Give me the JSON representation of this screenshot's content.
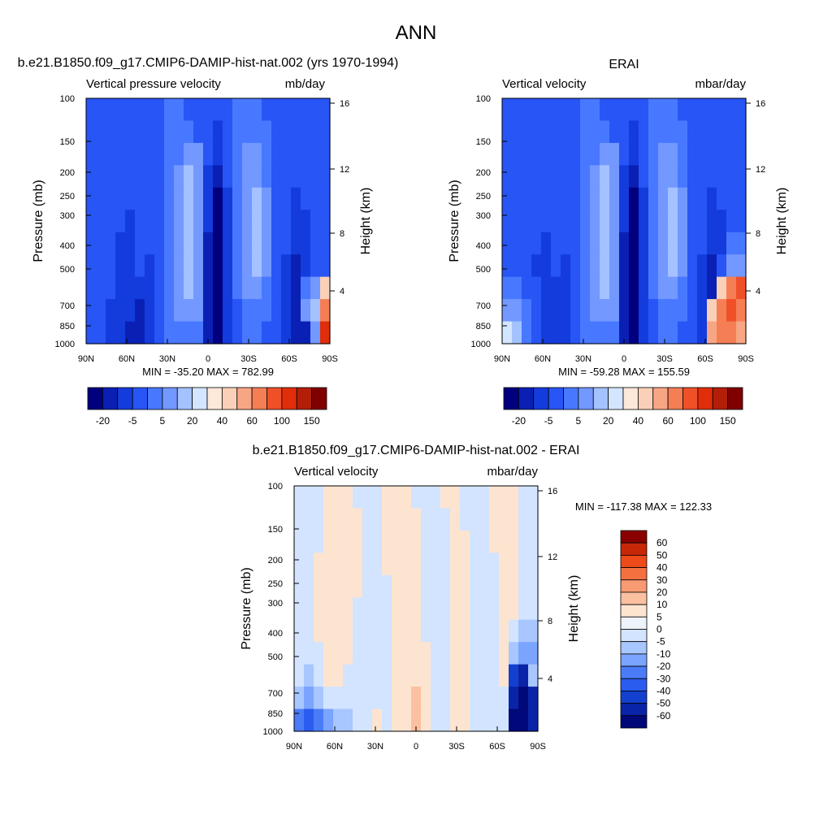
{
  "figure_title": "ANN",
  "colors": {
    "palette_main": [
      "#00007f",
      "#0a20b4",
      "#143cdc",
      "#2855f5",
      "#4878ff",
      "#7398ff",
      "#a4c2ff",
      "#d3e6ff",
      "#fde8d9",
      "#fbd0b8",
      "#f7a684",
      "#f57e55",
      "#f05028",
      "#e02e0a",
      "#b41e08",
      "#800000"
    ],
    "palette_diff": [
      "#00087a",
      "#0a24a8",
      "#1440d0",
      "#2a5cf0",
      "#4a7cf8",
      "#7aa4ff",
      "#a8c6ff",
      "#d2e4ff",
      "#eef2fa",
      "#fde4d0",
      "#fbc0a0",
      "#f89a72",
      "#f5703f",
      "#ee4a1a",
      "#c82808",
      "#8a0000"
    ]
  },
  "chart_data": [
    {
      "type": "contour",
      "id": "test",
      "title": "b.e21.B1850.f09_g17.CMIP6-DAMIP-hist-nat.002 (yrs 1970-1994)",
      "subtitle_left": "Vertical pressure velocity",
      "subtitle_right": "mb/day",
      "ylabel": "Pressure (mb)",
      "ylabel_right": "Height (km)",
      "x_ticks": [
        "90N",
        "60N",
        "30N",
        "0",
        "30S",
        "60S",
        "90S"
      ],
      "y_ticks": [
        "100",
        "150",
        "200",
        "250",
        "300",
        "400",
        "500",
        "700",
        "850",
        "1000"
      ],
      "y_right_ticks": [
        "4",
        "8",
        "12",
        "16"
      ],
      "stats": "MIN = -35.20  MAX = 782.99",
      "colorbar_labels": [
        "-20",
        "-5",
        "5",
        "20",
        "40",
        "60",
        "100",
        "150"
      ],
      "palette": "main",
      "field": [
        [
          3,
          3,
          3,
          3,
          3,
          3,
          3,
          3,
          4,
          4,
          3,
          3,
          3,
          3,
          3,
          4,
          4,
          4,
          3,
          3,
          3,
          3,
          3,
          3,
          3
        ],
        [
          3,
          3,
          3,
          3,
          3,
          3,
          3,
          3,
          4,
          4,
          4,
          3,
          3,
          2,
          3,
          4,
          4,
          4,
          4,
          3,
          3,
          3,
          3,
          3,
          3
        ],
        [
          3,
          3,
          3,
          3,
          3,
          3,
          3,
          3,
          4,
          4,
          5,
          5,
          3,
          2,
          3,
          4,
          5,
          5,
          4,
          3,
          3,
          3,
          3,
          3,
          3
        ],
        [
          3,
          3,
          3,
          3,
          3,
          3,
          3,
          3,
          4,
          5,
          6,
          5,
          2,
          1,
          3,
          4,
          5,
          5,
          4,
          3,
          3,
          3,
          3,
          3,
          3
        ],
        [
          3,
          3,
          3,
          3,
          3,
          3,
          3,
          3,
          4,
          5,
          6,
          5,
          2,
          0,
          2,
          4,
          5,
          6,
          5,
          3,
          3,
          2,
          3,
          3,
          3
        ],
        [
          3,
          3,
          3,
          3,
          2,
          3,
          3,
          3,
          4,
          5,
          6,
          5,
          2,
          0,
          2,
          4,
          5,
          6,
          5,
          3,
          3,
          2,
          2,
          3,
          3
        ],
        [
          3,
          3,
          3,
          2,
          2,
          3,
          3,
          3,
          4,
          5,
          6,
          5,
          1,
          0,
          2,
          4,
          5,
          6,
          5,
          3,
          3,
          2,
          2,
          3,
          3
        ],
        [
          3,
          3,
          3,
          2,
          2,
          3,
          2,
          3,
          4,
          5,
          6,
          5,
          1,
          0,
          2,
          4,
          5,
          6,
          5,
          3,
          2,
          1,
          2,
          3,
          3
        ],
        [
          3,
          3,
          3,
          2,
          2,
          2,
          2,
          3,
          4,
          5,
          6,
          5,
          1,
          0,
          2,
          4,
          5,
          5,
          4,
          3,
          2,
          1,
          4,
          5,
          9
        ],
        [
          3,
          3,
          2,
          2,
          2,
          1,
          2,
          3,
          4,
          5,
          5,
          5,
          1,
          0,
          2,
          3,
          4,
          4,
          4,
          3,
          2,
          1,
          5,
          6,
          11
        ],
        [
          3,
          3,
          2,
          2,
          1,
          1,
          2,
          3,
          4,
          4,
          4,
          4,
          1,
          0,
          2,
          3,
          4,
          4,
          3,
          3,
          2,
          1,
          1,
          5,
          13
        ]
      ]
    },
    {
      "type": "contour",
      "id": "reference",
      "title": "ERAI",
      "subtitle_left": "Vertical velocity",
      "subtitle_right": "mbar/day",
      "ylabel": "Pressure (mb)",
      "ylabel_right": "Height (km)",
      "x_ticks": [
        "90N",
        "60N",
        "30N",
        "0",
        "30S",
        "60S",
        "90S"
      ],
      "y_ticks": [
        "100",
        "150",
        "200",
        "250",
        "300",
        "400",
        "500",
        "700",
        "850",
        "1000"
      ],
      "y_right_ticks": [
        "4",
        "8",
        "12",
        "16"
      ],
      "stats": "MIN = -59.28  MAX = 155.59",
      "colorbar_labels": [
        "-20",
        "-5",
        "5",
        "20",
        "40",
        "60",
        "100",
        "150"
      ],
      "palette": "main",
      "field": [
        [
          3,
          3,
          3,
          3,
          3,
          3,
          3,
          3,
          4,
          4,
          3,
          3,
          3,
          3,
          3,
          4,
          4,
          4,
          3,
          3,
          3,
          3,
          3,
          3,
          3
        ],
        [
          3,
          3,
          3,
          3,
          3,
          3,
          3,
          3,
          4,
          4,
          4,
          3,
          3,
          2,
          3,
          4,
          4,
          4,
          4,
          3,
          3,
          3,
          3,
          3,
          3
        ],
        [
          3,
          3,
          3,
          3,
          3,
          3,
          3,
          3,
          4,
          4,
          5,
          5,
          3,
          2,
          3,
          4,
          5,
          5,
          4,
          3,
          3,
          3,
          3,
          3,
          3
        ],
        [
          3,
          3,
          3,
          3,
          3,
          3,
          3,
          3,
          4,
          5,
          6,
          5,
          2,
          1,
          3,
          4,
          5,
          5,
          4,
          3,
          3,
          3,
          3,
          3,
          3
        ],
        [
          3,
          3,
          3,
          3,
          3,
          3,
          3,
          3,
          4,
          5,
          6,
          5,
          2,
          0,
          2,
          4,
          5,
          6,
          5,
          3,
          3,
          2,
          3,
          3,
          3
        ],
        [
          3,
          3,
          3,
          3,
          3,
          3,
          3,
          3,
          4,
          5,
          6,
          5,
          2,
          0,
          2,
          4,
          5,
          6,
          5,
          3,
          3,
          2,
          2,
          3,
          3
        ],
        [
          3,
          3,
          3,
          3,
          2,
          3,
          3,
          3,
          4,
          5,
          6,
          5,
          1,
          0,
          2,
          4,
          5,
          6,
          5,
          3,
          3,
          2,
          2,
          4,
          4
        ],
        [
          3,
          3,
          3,
          2,
          2,
          3,
          2,
          3,
          4,
          5,
          6,
          5,
          1,
          0,
          2,
          4,
          5,
          6,
          5,
          3,
          2,
          1,
          3,
          5,
          5
        ],
        [
          4,
          4,
          3,
          3,
          2,
          2,
          2,
          3,
          4,
          5,
          6,
          5,
          1,
          0,
          2,
          4,
          5,
          5,
          4,
          3,
          2,
          1,
          9,
          11,
          12
        ],
        [
          5,
          5,
          4,
          3,
          2,
          2,
          2,
          3,
          4,
          5,
          5,
          5,
          1,
          0,
          2,
          3,
          4,
          4,
          4,
          3,
          2,
          9,
          11,
          12,
          11
        ],
        [
          7,
          6,
          4,
          3,
          2,
          2,
          2,
          3,
          4,
          4,
          4,
          4,
          1,
          0,
          2,
          3,
          4,
          4,
          3,
          3,
          2,
          10,
          11,
          11,
          10
        ]
      ]
    },
    {
      "type": "contour",
      "id": "difference",
      "title": "b.e21.B1850.f09_g17.CMIP6-DAMIP-hist-nat.002 - ERAI",
      "subtitle_left": "Vertical velocity",
      "subtitle_right": "mbar/day",
      "ylabel": "Pressure (mb)",
      "ylabel_right": "Height (km)",
      "x_ticks": [
        "90N",
        "60N",
        "30N",
        "0",
        "30S",
        "60S",
        "90S"
      ],
      "y_ticks": [
        "100",
        "150",
        "200",
        "250",
        "300",
        "400",
        "500",
        "700",
        "850",
        "1000"
      ],
      "y_right_ticks": [
        "4",
        "8",
        "12",
        "16"
      ],
      "stats": "MIN = -117.38  MAX = 122.33",
      "colorbar_labels": [
        "60",
        "50",
        "40",
        "30",
        "20",
        "10",
        "5",
        "0",
        "-5",
        "-10",
        "-20",
        "-30",
        "-40",
        "-50",
        "-60"
      ],
      "palette": "diff",
      "field": [
        [
          7,
          7,
          7,
          9,
          9,
          9,
          7,
          7,
          7,
          9,
          9,
          9,
          7,
          7,
          7,
          9,
          9,
          7,
          7,
          7,
          9,
          9,
          9,
          7,
          7
        ],
        [
          7,
          7,
          7,
          9,
          9,
          9,
          9,
          7,
          7,
          9,
          9,
          9,
          9,
          7,
          7,
          7,
          9,
          7,
          7,
          7,
          9,
          9,
          9,
          7,
          7
        ],
        [
          7,
          7,
          7,
          9,
          9,
          9,
          9,
          7,
          7,
          9,
          9,
          9,
          9,
          7,
          7,
          7,
          9,
          9,
          7,
          7,
          9,
          9,
          9,
          7,
          7
        ],
        [
          7,
          7,
          9,
          9,
          9,
          9,
          9,
          7,
          7,
          9,
          9,
          9,
          9,
          7,
          7,
          7,
          9,
          9,
          7,
          7,
          7,
          9,
          9,
          7,
          7
        ],
        [
          7,
          7,
          9,
          9,
          9,
          9,
          9,
          7,
          7,
          7,
          9,
          9,
          9,
          7,
          7,
          7,
          9,
          9,
          7,
          7,
          7,
          9,
          9,
          7,
          7
        ],
        [
          7,
          7,
          9,
          9,
          9,
          9,
          7,
          7,
          7,
          7,
          9,
          9,
          9,
          7,
          7,
          7,
          9,
          9,
          7,
          7,
          7,
          9,
          9,
          7,
          7
        ],
        [
          7,
          7,
          9,
          9,
          9,
          9,
          7,
          7,
          7,
          7,
          9,
          9,
          9,
          7,
          7,
          7,
          9,
          9,
          7,
          7,
          7,
          9,
          7,
          6,
          6
        ],
        [
          7,
          7,
          7,
          9,
          9,
          9,
          7,
          7,
          7,
          7,
          9,
          9,
          9,
          9,
          7,
          7,
          9,
          9,
          7,
          7,
          7,
          9,
          6,
          5,
          5
        ],
        [
          7,
          6,
          7,
          9,
          9,
          7,
          7,
          7,
          7,
          7,
          9,
          9,
          9,
          9,
          7,
          7,
          9,
          9,
          7,
          7,
          7,
          9,
          2,
          1,
          6
        ],
        [
          6,
          5,
          6,
          7,
          7,
          7,
          7,
          7,
          7,
          7,
          9,
          9,
          10,
          9,
          7,
          7,
          9,
          9,
          7,
          7,
          7,
          7,
          1,
          0,
          1
        ],
        [
          4,
          3,
          4,
          5,
          6,
          6,
          7,
          7,
          9,
          7,
          9,
          9,
          10,
          9,
          7,
          7,
          9,
          9,
          7,
          7,
          7,
          7,
          0,
          0,
          1
        ]
      ]
    }
  ]
}
